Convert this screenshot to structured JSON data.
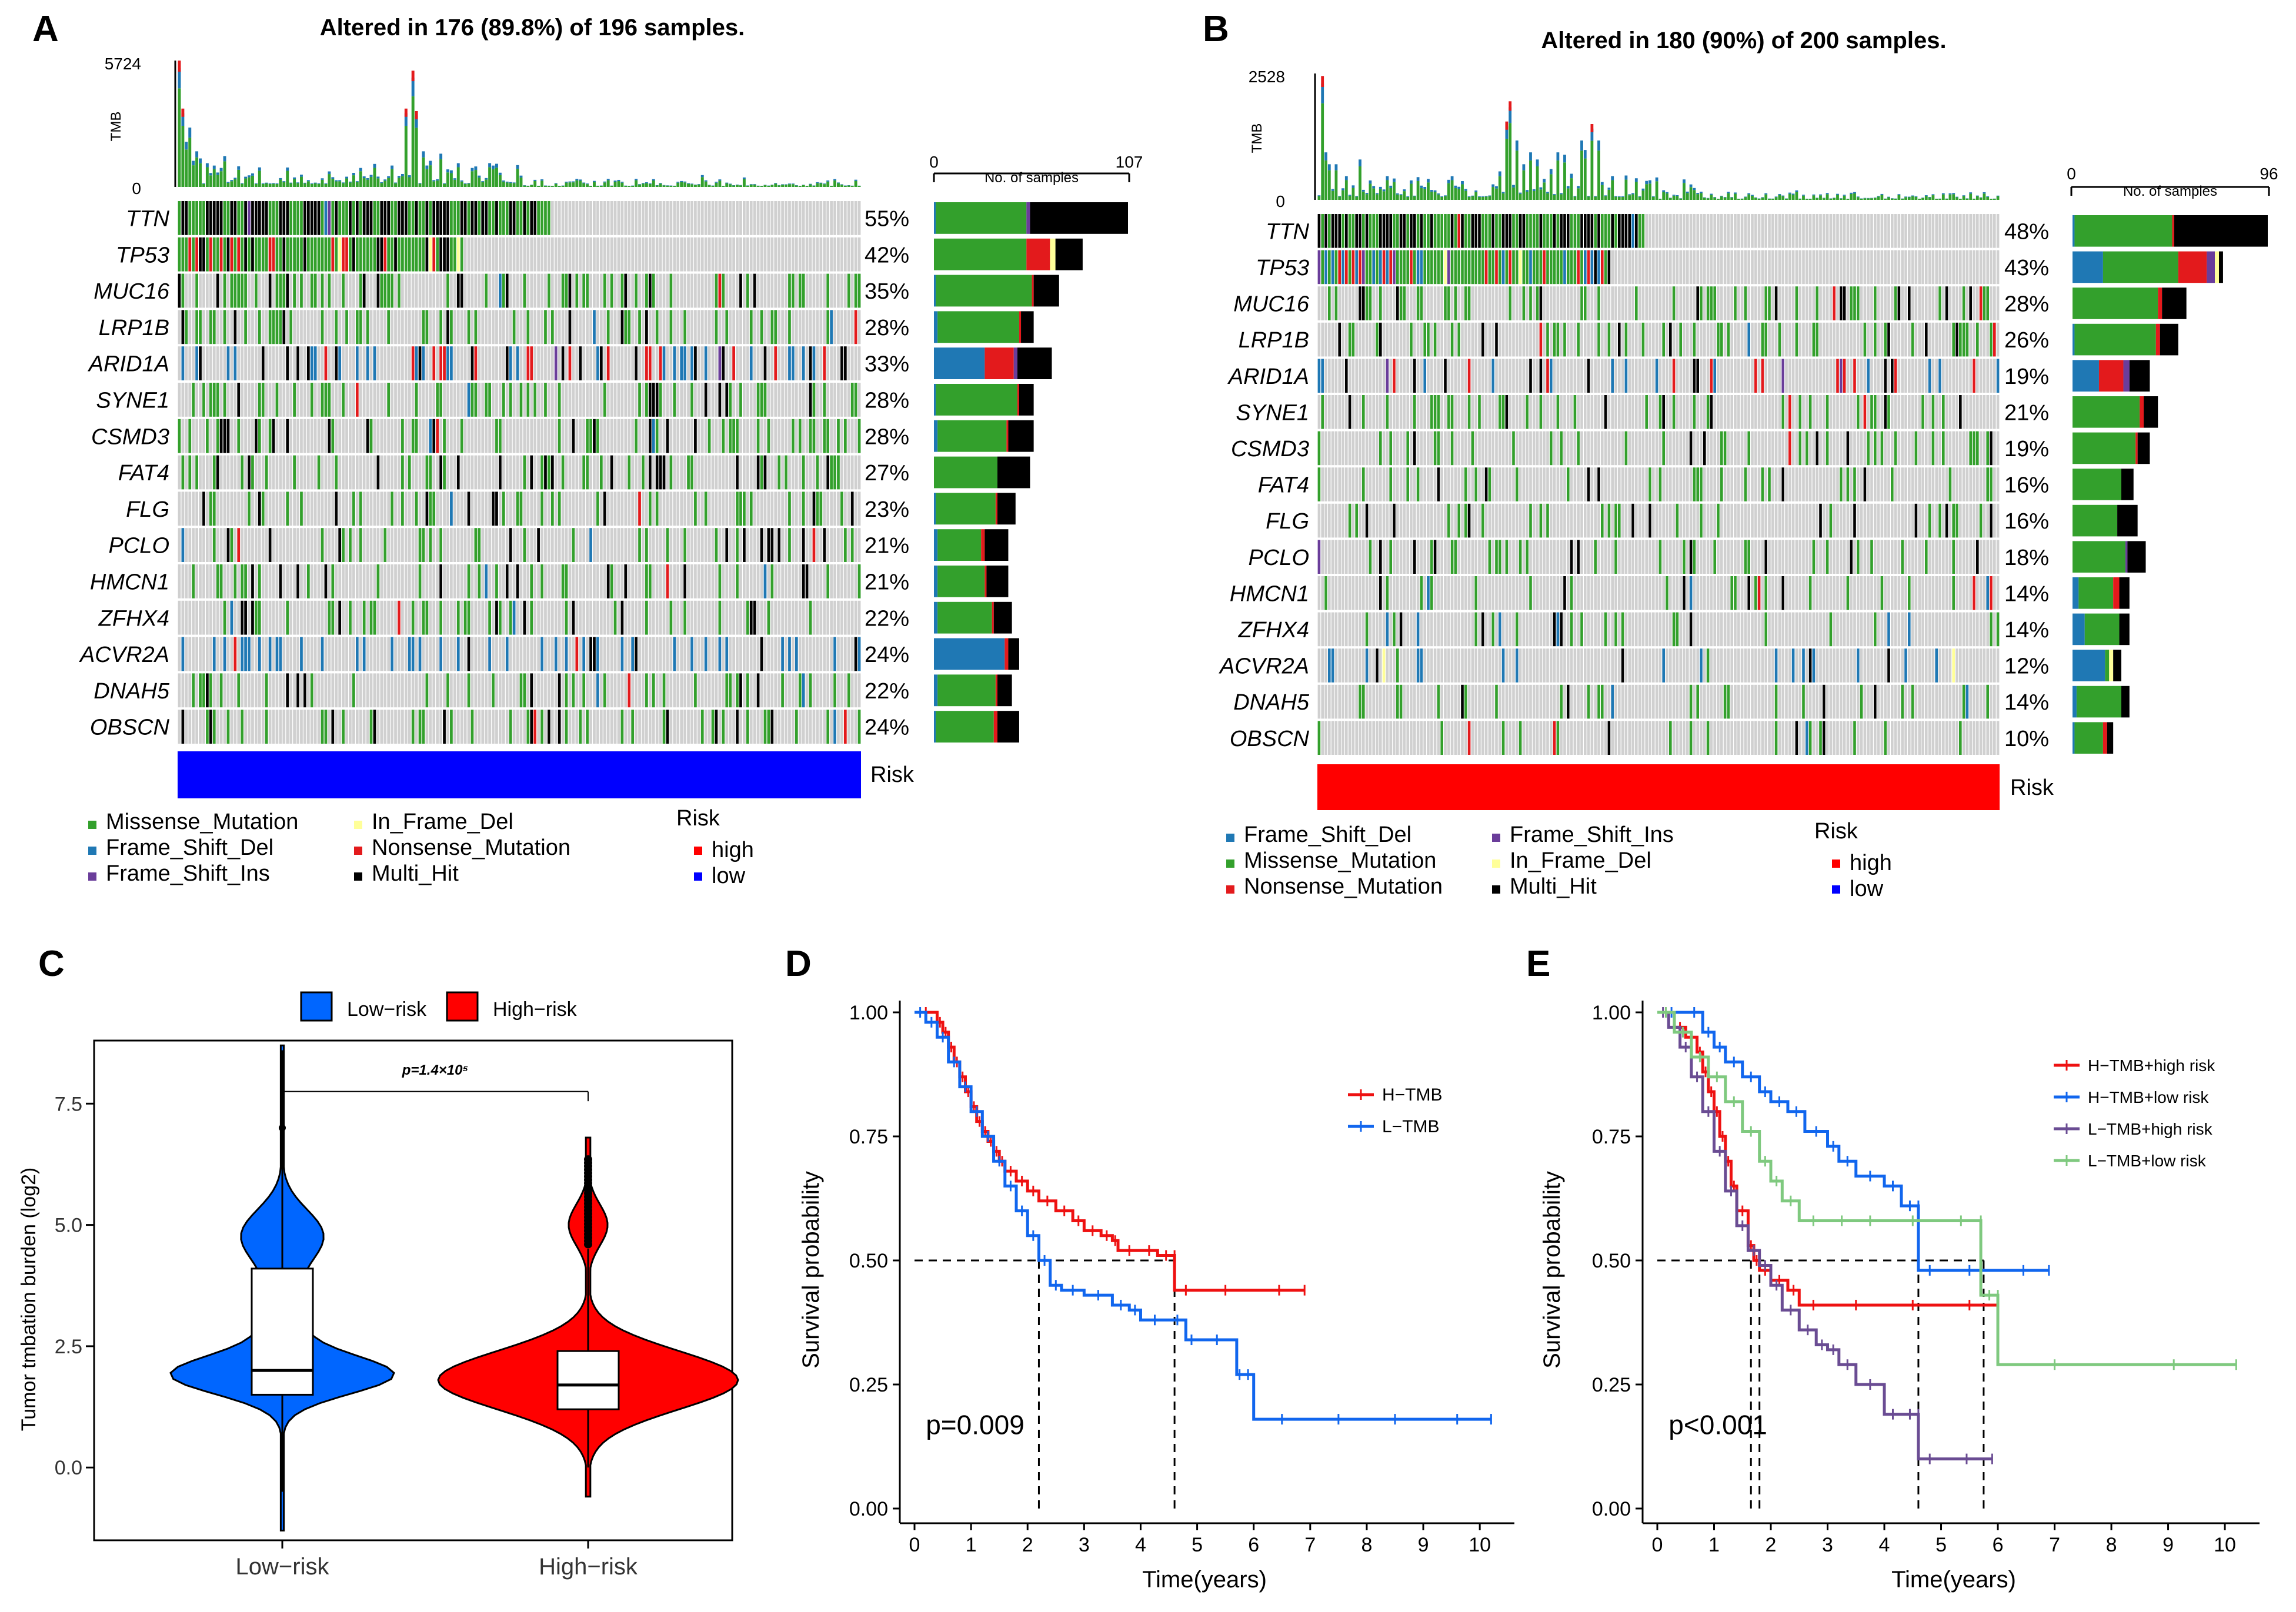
{
  "colors": {
    "missense": "#33a02c",
    "frame_shift_del": "#1f78b4",
    "frame_shift_ins": "#6a3d9a",
    "in_frame_del": "#ffff99",
    "nonsense": "#e31a1c",
    "multi_hit": "#000000",
    "grey": "#d0d0d0",
    "low_bar": "#0000ff",
    "high_bar": "#ff0000",
    "violin_low": "#0066ff",
    "violin_high": "#ff0000",
    "h_tmb": "#ee1111",
    "l_tmb": "#1166ee",
    "e_hh": "#ee1111",
    "e_hl": "#1166ee",
    "e_lh": "#6a4c93",
    "e_ll": "#7fc97f"
  },
  "panelA": {
    "letter": "A",
    "title": "Altered in 176 (89.8%) of 196 samples.",
    "tmb_label": "TMB",
    "tmb_max": "5724",
    "tmb_min": "0",
    "count_min": "0",
    "count_max": "107",
    "count_label": "No. of samples",
    "risk_label": "Risk",
    "genes": [
      "TTN",
      "TP53",
      "MUC16",
      "LRP1B",
      "ARID1A",
      "SYNE1",
      "CSMD3",
      "FAT4",
      "FLG",
      "PCLO",
      "HMCN1",
      "ZFHX4",
      "ACVR2A",
      "DNAH5",
      "OBSCN"
    ],
    "percents": [
      "55%",
      "42%",
      "35%",
      "28%",
      "33%",
      "28%",
      "28%",
      "27%",
      "23%",
      "21%",
      "21%",
      "22%",
      "24%",
      "22%",
      "24%"
    ],
    "legend": {
      "items": [
        "Missense_Mutation",
        "Frame_Shift_Del",
        "Frame_Shift_Ins",
        "In_Frame_Del",
        "Nonsense_Mutation",
        "Multi_Hit"
      ],
      "risk_title": "Risk",
      "risk_high": "high",
      "risk_low": "low"
    }
  },
  "panelB": {
    "letter": "B",
    "title": "Altered in 180 (90%) of 200 samples.",
    "tmb_label": "TMB",
    "tmb_max": "2528",
    "tmb_min": "0",
    "count_min": "0",
    "count_max": "96",
    "count_label": "No. of samples",
    "risk_label": "Risk",
    "genes": [
      "TTN",
      "TP53",
      "MUC16",
      "LRP1B",
      "ARID1A",
      "SYNE1",
      "CSMD3",
      "FAT4",
      "FLG",
      "PCLO",
      "HMCN1",
      "ZFHX4",
      "ACVR2A",
      "DNAH5",
      "OBSCN"
    ],
    "percents": [
      "48%",
      "43%",
      "28%",
      "26%",
      "19%",
      "21%",
      "19%",
      "16%",
      "16%",
      "18%",
      "14%",
      "14%",
      "12%",
      "14%",
      "10%"
    ],
    "legend": {
      "items": [
        "Frame_Shift_Del",
        "Missense_Mutation",
        "Nonsense_Mutation",
        "Frame_Shift_Ins",
        "In_Frame_Del",
        "Multi_Hit"
      ],
      "risk_title": "Risk",
      "risk_high": "high",
      "risk_low": "low"
    }
  },
  "panelC": {
    "letter": "C",
    "legend_low": "Low−risk",
    "legend_high": "High−risk",
    "ylabel": "Tumor tmbation burden (log2)",
    "pvalue": "p=1.4×10⁵"
  },
  "panelD": {
    "letter": "D",
    "ylabel": "Survival probability",
    "xlabel": "Time(years)",
    "pvalue": "p=0.009",
    "legend": [
      "H−TMB",
      "L−TMB"
    ]
  },
  "panelE": {
    "letter": "E",
    "ylabel": "Survival probability",
    "xlabel": "Time(years)",
    "pvalue": "p<0.001",
    "legend": [
      "H−TMB+high risk",
      "H−TMB+low risk",
      "L−TMB+high risk",
      "L−TMB+low risk"
    ]
  },
  "chart_data": [
    {
      "type": "heatmap",
      "id": "A",
      "title": "Altered in 176 (89.8%) of 196 samples.",
      "samples": 196,
      "tmb_range": [
        0,
        5724
      ],
      "count_range": [
        0,
        107
      ],
      "genes": [
        "TTN",
        "TP53",
        "MUC16",
        "LRP1B",
        "ARID1A",
        "SYNE1",
        "CSMD3",
        "FAT4",
        "FLG",
        "PCLO",
        "HMCN1",
        "ZFHX4",
        "ACVR2A",
        "DNAH5",
        "OBSCN"
      ],
      "percent": [
        55,
        42,
        35,
        28,
        33,
        28,
        28,
        27,
        23,
        21,
        21,
        22,
        24,
        22,
        24
      ],
      "counts": [
        107,
        82,
        69,
        55,
        65,
        55,
        55,
        53,
        45,
        41,
        41,
        43,
        47,
        43,
        47
      ],
      "mix": [
        {
          "missense": 50,
          "frame_shift_del": 1,
          "frame_shift_ins": 2,
          "nonsense": 0,
          "multi_hit": 54
        },
        {
          "missense": 51,
          "frame_shift_del": 0,
          "in_frame_del": 3,
          "nonsense": 13,
          "multi_hit": 15
        },
        {
          "missense": 53,
          "frame_shift_del": 1,
          "nonsense": 1,
          "multi_hit": 14
        },
        {
          "missense": 45,
          "frame_shift_del": 2,
          "nonsense": 1,
          "multi_hit": 7
        },
        {
          "missense": 0,
          "frame_shift_del": 28,
          "frame_shift_ins": 2,
          "nonsense": 16,
          "multi_hit": 19
        },
        {
          "missense": 45,
          "frame_shift_del": 1,
          "nonsense": 1,
          "multi_hit": 8
        },
        {
          "missense": 38,
          "frame_shift_del": 2,
          "nonsense": 1,
          "multi_hit": 14
        },
        {
          "missense": 35,
          "multi_hit": 18
        },
        {
          "missense": 33,
          "frame_shift_del": 1,
          "nonsense": 1,
          "multi_hit": 10
        },
        {
          "missense": 24,
          "frame_shift_del": 2,
          "nonsense": 2,
          "multi_hit": 13
        },
        {
          "missense": 26,
          "frame_shift_del": 2,
          "nonsense": 1,
          "multi_hit": 12
        },
        {
          "missense": 30,
          "frame_shift_del": 2,
          "nonsense": 1,
          "multi_hit": 10
        },
        {
          "missense": 0,
          "frame_shift_del": 39,
          "nonsense": 2,
          "multi_hit": 6
        },
        {
          "missense": 32,
          "frame_shift_del": 2,
          "nonsense": 1,
          "multi_hit": 8
        },
        {
          "missense": 32,
          "frame_shift_del": 1,
          "nonsense": 2,
          "multi_hit": 12
        }
      ],
      "risk_group": "low"
    },
    {
      "type": "heatmap",
      "id": "B",
      "title": "Altered in 180 (90%) of 200 samples.",
      "samples": 200,
      "tmb_range": [
        0,
        2528
      ],
      "count_range": [
        0,
        96
      ],
      "genes": [
        "TTN",
        "TP53",
        "MUC16",
        "LRP1B",
        "ARID1A",
        "SYNE1",
        "CSMD3",
        "FAT4",
        "FLG",
        "PCLO",
        "HMCN1",
        "ZFHX4",
        "ACVR2A",
        "DNAH5",
        "OBSCN"
      ],
      "percent": [
        48,
        43,
        28,
        26,
        19,
        21,
        19,
        16,
        16,
        18,
        14,
        14,
        12,
        14,
        10
      ],
      "counts": [
        96,
        86,
        56,
        52,
        38,
        42,
        38,
        32,
        32,
        36,
        28,
        28,
        24,
        28,
        20
      ],
      "mix": [
        {
          "missense": 48,
          "frame_shift_del": 1,
          "nonsense": 1,
          "multi_hit": 46
        },
        {
          "frame_shift_del": 15,
          "missense": 37,
          "nonsense": 14,
          "frame_shift_ins": 4,
          "in_frame_del": 2,
          "multi_hit": 2
        },
        {
          "missense": 42,
          "nonsense": 2,
          "multi_hit": 12
        },
        {
          "missense": 40,
          "frame_shift_del": 1,
          "nonsense": 2,
          "multi_hit": 9
        },
        {
          "frame_shift_del": 13,
          "nonsense": 12,
          "frame_shift_ins": 3,
          "multi_hit": 10
        },
        {
          "missense": 33,
          "nonsense": 2,
          "multi_hit": 7
        },
        {
          "missense": 31,
          "nonsense": 1,
          "multi_hit": 6
        },
        {
          "missense": 24,
          "multi_hit": 6
        },
        {
          "missense": 22,
          "multi_hit": 10
        },
        {
          "missense": 26,
          "frame_shift_ins": 1,
          "multi_hit": 9
        },
        {
          "missense": 17,
          "frame_shift_del": 3,
          "nonsense": 3,
          "multi_hit": 5
        },
        {
          "missense": 17,
          "frame_shift_del": 6,
          "multi_hit": 5
        },
        {
          "frame_shift_del": 16,
          "missense": 2,
          "in_frame_del": 2,
          "multi_hit": 4
        },
        {
          "missense": 22,
          "frame_shift_del": 2,
          "multi_hit": 4
        },
        {
          "missense": 14,
          "frame_shift_del": 1,
          "nonsense": 2,
          "multi_hit": 3
        }
      ],
      "risk_group": "high"
    },
    {
      "type": "violin",
      "id": "C",
      "ylabel": "Tumor tmbation burden (log2)",
      "categories": [
        "Low−risk",
        "High−risk"
      ],
      "yticks": [
        0.0,
        2.5,
        5.0,
        7.5
      ],
      "ylim": [
        -1.5,
        8.8
      ],
      "groups": [
        {
          "name": "Low−risk",
          "min": -1.3,
          "q1": 1.5,
          "median": 2.0,
          "q3": 4.1,
          "max": 8.7,
          "whisker_low": -0.5,
          "whisker_high": 8.6
        },
        {
          "name": "High−risk",
          "min": -0.6,
          "q1": 1.2,
          "median": 1.7,
          "q3": 2.4,
          "max": 6.8,
          "whisker_low": 0.0,
          "whisker_high": 4.5
        }
      ],
      "annotation": "p=1.4×10⁵"
    },
    {
      "type": "line",
      "id": "D",
      "xlabel": "Time(years)",
      "ylabel": "Survival probability",
      "xlim": [
        0,
        10.3
      ],
      "ylim": [
        0,
        1.0
      ],
      "xticks": [
        0,
        1,
        2,
        3,
        4,
        5,
        6,
        7,
        8,
        9,
        10
      ],
      "yticks": [
        0.0,
        0.25,
        0.5,
        0.75,
        1.0
      ],
      "series": [
        {
          "name": "H−TMB",
          "x": [
            0,
            0.4,
            0.5,
            0.6,
            0.7,
            0.8,
            0.9,
            1.0,
            1.1,
            1.2,
            1.3,
            1.4,
            1.5,
            1.6,
            1.8,
            2.0,
            2.2,
            2.5,
            2.8,
            3.0,
            3.3,
            3.5,
            3.6,
            4.0,
            4.3,
            4.6,
            4.6,
            5.0,
            6.0,
            6.9
          ],
          "y": [
            1.0,
            0.98,
            0.96,
            0.93,
            0.9,
            0.87,
            0.84,
            0.81,
            0.78,
            0.76,
            0.74,
            0.72,
            0.7,
            0.68,
            0.66,
            0.64,
            0.62,
            0.6,
            0.58,
            0.56,
            0.55,
            0.54,
            0.52,
            0.52,
            0.51,
            0.51,
            0.44,
            0.44,
            0.44,
            0.44
          ]
        },
        {
          "name": "L−TMB",
          "x": [
            0,
            0.2,
            0.4,
            0.6,
            0.8,
            1.0,
            1.2,
            1.4,
            1.6,
            1.8,
            2.0,
            2.2,
            2.4,
            2.6,
            3.0,
            3.5,
            3.8,
            4.0,
            4.5,
            4.8,
            5.0,
            5.7,
            5.8,
            6.0,
            7.0,
            8.0,
            9.0,
            10.2
          ],
          "y": [
            1.0,
            0.98,
            0.95,
            0.9,
            0.85,
            0.8,
            0.75,
            0.7,
            0.65,
            0.6,
            0.55,
            0.5,
            0.45,
            0.44,
            0.43,
            0.41,
            0.4,
            0.38,
            0.38,
            0.34,
            0.34,
            0.27,
            0.27,
            0.18,
            0.18,
            0.18,
            0.18,
            0.18
          ]
        }
      ],
      "median_lines": [
        2.2,
        4.6
      ],
      "annotation": "p=0.009"
    },
    {
      "type": "line",
      "id": "E",
      "xlabel": "Time(years)",
      "ylabel": "Survival probability",
      "xlim": [
        0,
        10.3
      ],
      "ylim": [
        0,
        1.0
      ],
      "xticks": [
        0,
        1,
        2,
        3,
        4,
        5,
        6,
        7,
        8,
        9,
        10
      ],
      "yticks": [
        0.0,
        0.25,
        0.5,
        0.75,
        1.0
      ],
      "series": [
        {
          "name": "H−TMB+high risk",
          "x": [
            0,
            0.3,
            0.5,
            0.7,
            0.8,
            0.9,
            1.0,
            1.1,
            1.2,
            1.3,
            1.4,
            1.6,
            1.7,
            1.8,
            2.0,
            2.3,
            2.5,
            3.0,
            4.0,
            5.0,
            6.0
          ],
          "y": [
            1.0,
            0.97,
            0.95,
            0.92,
            0.88,
            0.84,
            0.8,
            0.75,
            0.7,
            0.65,
            0.6,
            0.53,
            0.5,
            0.48,
            0.46,
            0.44,
            0.41,
            0.41,
            0.41,
            0.41,
            0.41
          ]
        },
        {
          "name": "H−TMB+low risk",
          "x": [
            0,
            0.5,
            0.8,
            1.0,
            1.2,
            1.5,
            1.8,
            2.0,
            2.3,
            2.6,
            3.0,
            3.2,
            3.5,
            4.0,
            4.3,
            4.6,
            4.6,
            5.0,
            6.0,
            6.9
          ],
          "y": [
            1.0,
            1.0,
            0.96,
            0.93,
            0.9,
            0.87,
            0.84,
            0.82,
            0.8,
            0.76,
            0.73,
            0.7,
            0.67,
            0.65,
            0.61,
            0.61,
            0.48,
            0.48,
            0.48,
            0.48
          ]
        },
        {
          "name": "L−TMB+high risk",
          "x": [
            0,
            0.2,
            0.4,
            0.6,
            0.8,
            1.0,
            1.2,
            1.4,
            1.6,
            1.8,
            2.0,
            2.2,
            2.5,
            2.8,
            3.0,
            3.2,
            3.5,
            4.0,
            4.3,
            4.6,
            4.6,
            5.0,
            5.9
          ],
          "y": [
            1.0,
            0.97,
            0.93,
            0.87,
            0.8,
            0.72,
            0.64,
            0.57,
            0.52,
            0.49,
            0.45,
            0.4,
            0.36,
            0.33,
            0.32,
            0.29,
            0.25,
            0.19,
            0.19,
            0.19,
            0.1,
            0.1,
            0.1
          ]
        },
        {
          "name": "L−TMB+low risk",
          "x": [
            0,
            0.3,
            0.6,
            0.9,
            1.2,
            1.5,
            1.8,
            2.0,
            2.2,
            2.5,
            3.0,
            3.5,
            4.0,
            5.0,
            5.7,
            5.7,
            6.0,
            6.0,
            8.0,
            10.2
          ],
          "y": [
            1.0,
            0.96,
            0.91,
            0.87,
            0.82,
            0.76,
            0.7,
            0.66,
            0.62,
            0.58,
            0.58,
            0.58,
            0.58,
            0.58,
            0.58,
            0.43,
            0.43,
            0.29,
            0.29,
            0.29
          ]
        }
      ],
      "median_lines": [
        1.65,
        1.8,
        4.6,
        5.75
      ],
      "annotation": "p<0.001"
    }
  ]
}
